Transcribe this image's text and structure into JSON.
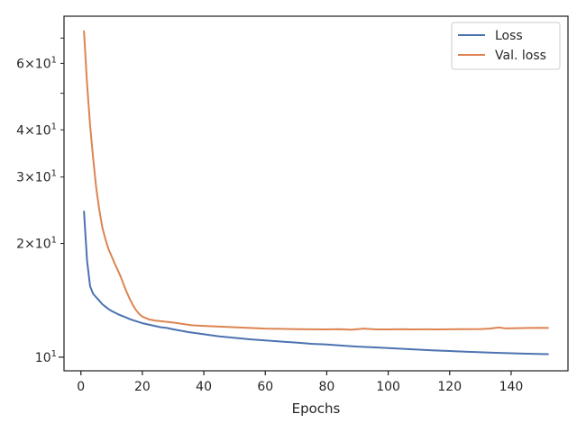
{
  "chart_data": {
    "type": "line",
    "title": "",
    "xlabel": "Epochs",
    "ylabel": "",
    "xlim": [
      -5.5,
      158.5
    ],
    "ylim": [
      9.2,
      80
    ],
    "yscale": "log",
    "grid": false,
    "legend_position": "top-right",
    "x_ticks": [
      0,
      20,
      40,
      60,
      80,
      100,
      120,
      140
    ],
    "x_tick_labels": [
      "0",
      "20",
      "40",
      "60",
      "80",
      "100",
      "120",
      "140"
    ],
    "y_major_ticks": [
      10
    ],
    "y_major_tick_labels": [
      {
        "base": "10",
        "exp": "1"
      }
    ],
    "y_minor_ticks": [
      20,
      30,
      40,
      50,
      60,
      70
    ],
    "y_minor_tick_labels": [
      {
        "value": 20,
        "coef": "2",
        "base": "10",
        "exp": "1"
      },
      {
        "value": 30,
        "coef": "3",
        "base": "10",
        "exp": "1"
      },
      {
        "value": 40,
        "coef": "4",
        "base": "10",
        "exp": "1"
      },
      {
        "value": 60,
        "coef": "6",
        "base": "10",
        "exp": "1"
      }
    ],
    "series": [
      {
        "name": "Loss",
        "color": "#4c72b0",
        "points": [
          [
            1,
            24.3
          ],
          [
            2,
            18
          ],
          [
            3,
            15.4
          ],
          [
            4,
            14.7
          ],
          [
            5,
            14.4
          ],
          [
            6,
            14.1
          ],
          [
            7,
            13.8
          ],
          [
            8,
            13.6
          ],
          [
            9,
            13.4
          ],
          [
            10,
            13.25
          ],
          [
            12,
            13
          ],
          [
            14,
            12.8
          ],
          [
            16,
            12.6
          ],
          [
            18,
            12.45
          ],
          [
            20,
            12.3
          ],
          [
            22,
            12.2
          ],
          [
            24,
            12.1
          ],
          [
            26,
            12
          ],
          [
            28,
            11.95
          ],
          [
            30,
            11.85
          ],
          [
            35,
            11.65
          ],
          [
            40,
            11.5
          ],
          [
            45,
            11.35
          ],
          [
            50,
            11.25
          ],
          [
            55,
            11.15
          ],
          [
            60,
            11.07
          ],
          [
            65,
            11
          ],
          [
            70,
            10.93
          ],
          [
            75,
            10.85
          ],
          [
            80,
            10.8
          ],
          [
            85,
            10.73
          ],
          [
            90,
            10.66
          ],
          [
            95,
            10.62
          ],
          [
            100,
            10.57
          ],
          [
            105,
            10.52
          ],
          [
            110,
            10.47
          ],
          [
            115,
            10.42
          ],
          [
            120,
            10.38
          ],
          [
            125,
            10.34
          ],
          [
            130,
            10.3
          ],
          [
            135,
            10.27
          ],
          [
            140,
            10.24
          ],
          [
            145,
            10.21
          ],
          [
            150,
            10.19
          ],
          [
            152,
            10.18
          ]
        ]
      },
      {
        "name": "Val. loss",
        "color": "#dd8452",
        "points": [
          [
            1,
            73
          ],
          [
            2,
            53
          ],
          [
            3,
            41
          ],
          [
            4,
            33.5
          ],
          [
            5,
            28
          ],
          [
            6,
            24.5
          ],
          [
            7,
            22
          ],
          [
            8,
            20.5
          ],
          [
            9,
            19.3
          ],
          [
            10,
            18.5
          ],
          [
            11,
            17.7
          ],
          [
            12,
            17
          ],
          [
            13,
            16.3
          ],
          [
            14,
            15.5
          ],
          [
            15,
            14.8
          ],
          [
            16,
            14.2
          ],
          [
            17,
            13.7
          ],
          [
            18,
            13.3
          ],
          [
            19,
            13
          ],
          [
            20,
            12.8
          ],
          [
            22,
            12.6
          ],
          [
            24,
            12.5
          ],
          [
            26,
            12.45
          ],
          [
            28,
            12.4
          ],
          [
            30,
            12.35
          ],
          [
            33,
            12.25
          ],
          [
            36,
            12.15
          ],
          [
            40,
            12.1
          ],
          [
            45,
            12.05
          ],
          [
            50,
            12
          ],
          [
            55,
            11.95
          ],
          [
            60,
            11.9
          ],
          [
            65,
            11.88
          ],
          [
            70,
            11.86
          ],
          [
            75,
            11.85
          ],
          [
            80,
            11.84
          ],
          [
            84,
            11.86
          ],
          [
            88,
            11.82
          ],
          [
            92,
            11.9
          ],
          [
            96,
            11.84
          ],
          [
            100,
            11.84
          ],
          [
            104,
            11.86
          ],
          [
            108,
            11.84
          ],
          [
            112,
            11.85
          ],
          [
            116,
            11.84
          ],
          [
            120,
            11.85
          ],
          [
            125,
            11.86
          ],
          [
            130,
            11.87
          ],
          [
            133,
            11.9
          ],
          [
            136,
            11.98
          ],
          [
            138,
            11.92
          ],
          [
            142,
            11.93
          ],
          [
            146,
            11.95
          ],
          [
            150,
            11.96
          ],
          [
            152,
            11.95
          ]
        ]
      }
    ]
  }
}
